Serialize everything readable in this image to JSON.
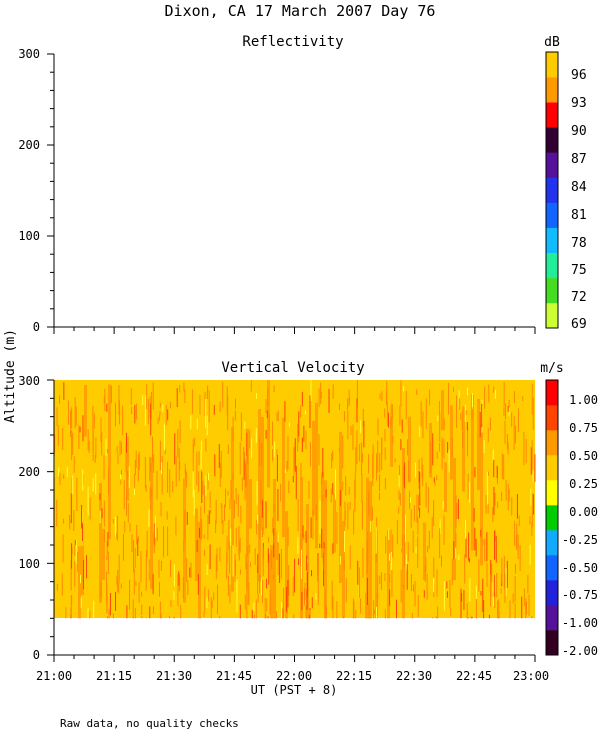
{
  "chart_data": [
    {
      "type": "heatmap",
      "title": "Reflectivity",
      "ylabel": "Altitude (m)",
      "xlim": [
        "21:00",
        "23:00"
      ],
      "ylim": [
        0,
        300
      ],
      "ytick_labels": [
        "0",
        "100",
        "200",
        "300"
      ],
      "colorbar": {
        "unit": "dB",
        "labels": [
          "69",
          "72",
          "75",
          "78",
          "81",
          "84",
          "87",
          "90",
          "93",
          "96"
        ],
        "colors": [
          "#ccff33",
          "#44dd22",
          "#22ee99",
          "#11bbff",
          "#1166ff",
          "#2233ee",
          "#551199",
          "#330033",
          "#ff0000",
          "#ff9900",
          "#ffcc00"
        ]
      },
      "values": "no data"
    },
    {
      "type": "heatmap",
      "title": "Vertical Velocity",
      "ylabel": "Altitude (m)",
      "xlabel": "UT  (PST + 8)",
      "xlim": [
        "21:00",
        "23:00"
      ],
      "ylim": [
        0,
        300
      ],
      "data_altitude_range_m": [
        40,
        300
      ],
      "ytick_labels": [
        "0",
        "100",
        "200",
        "300"
      ],
      "xtick_labels": [
        "21:00",
        "21:15",
        "21:30",
        "21:45",
        "22:00",
        "22:15",
        "22:30",
        "22:45",
        "23:00"
      ],
      "colorbar": {
        "unit": "m/s",
        "labels": [
          "-2.00",
          "-1.00",
          "-0.75",
          "-0.50",
          "-0.25",
          "0.00",
          "0.25",
          "0.50",
          "0.75",
          "1.00"
        ],
        "colors": [
          "#330022",
          "#551199",
          "#2222dd",
          "#1166ff",
          "#11aaff",
          "#00cc00",
          "#ffff00",
          "#ffcc00",
          "#ff9900",
          "#ff4400",
          "#ff0000"
        ]
      },
      "dominant_range": "0.50 to 1.00 m/s (yellow-orange), higher values (orange-red) in vertical streaks"
    }
  ],
  "figure": {
    "title": "Dixon, CA 17 March 2007  Day  76",
    "footnote": "Raw data, no quality checks",
    "shared_ylabel": "Altitude (m)"
  }
}
